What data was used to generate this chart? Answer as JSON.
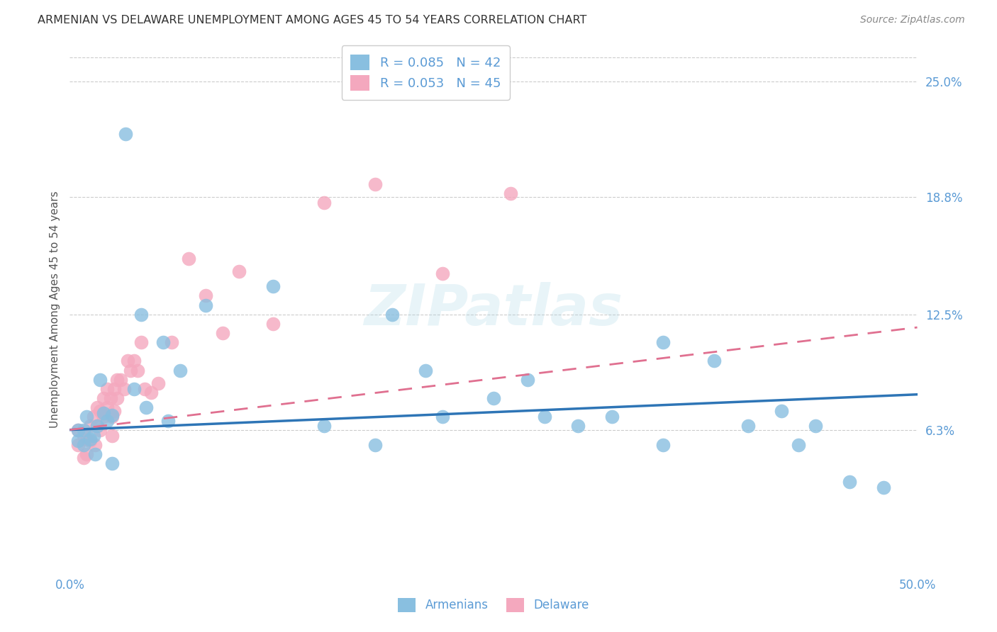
{
  "title": "ARMENIAN VS DELAWARE UNEMPLOYMENT AMONG AGES 45 TO 54 YEARS CORRELATION CHART",
  "source": "Source: ZipAtlas.com",
  "ylabel": "Unemployment Among Ages 45 to 54 years",
  "xlim": [
    0.0,
    0.5
  ],
  "ylim": [
    -0.015,
    0.27
  ],
  "ytick_vals": [
    0.063,
    0.125,
    0.188,
    0.25
  ],
  "ytick_labels": [
    "6.3%",
    "12.5%",
    "18.8%",
    "25.0%"
  ],
  "grid_color": "#cccccc",
  "background_color": "#ffffff",
  "title_color": "#333333",
  "axis_label_color": "#555555",
  "label_color": "#5b9bd5",
  "armenians_color": "#89bfe0",
  "delaware_color": "#f4a8be",
  "armenians_line_color": "#2e75b6",
  "delaware_line_color": "#e07090",
  "legend_armenians_label": "R = 0.085   N = 42",
  "legend_delaware_label": "R = 0.053   N = 45",
  "watermark": "ZIPatlas",
  "arm_line_x0": 0.0,
  "arm_line_y0": 0.063,
  "arm_line_x1": 0.5,
  "arm_line_y1": 0.082,
  "del_line_x0": 0.0,
  "del_line_y0": 0.063,
  "del_line_x1": 0.5,
  "del_line_y1": 0.118,
  "armenians_x": [
    0.033,
    0.02,
    0.016,
    0.022,
    0.025,
    0.01,
    0.008,
    0.005,
    0.014,
    0.012,
    0.018,
    0.038,
    0.042,
    0.055,
    0.065,
    0.08,
    0.058,
    0.045,
    0.12,
    0.15,
    0.18,
    0.22,
    0.19,
    0.21,
    0.28,
    0.32,
    0.35,
    0.38,
    0.4,
    0.43,
    0.46,
    0.48,
    0.35,
    0.27,
    0.25,
    0.3,
    0.42,
    0.44,
    0.005,
    0.008,
    0.015,
    0.025
  ],
  "armenians_y": [
    0.222,
    0.072,
    0.065,
    0.068,
    0.071,
    0.07,
    0.063,
    0.057,
    0.06,
    0.058,
    0.09,
    0.085,
    0.125,
    0.11,
    0.095,
    0.13,
    0.068,
    0.075,
    0.14,
    0.065,
    0.055,
    0.07,
    0.125,
    0.095,
    0.07,
    0.07,
    0.055,
    0.1,
    0.065,
    0.055,
    0.035,
    0.032,
    0.11,
    0.09,
    0.08,
    0.065,
    0.073,
    0.065,
    0.063,
    0.055,
    0.05,
    0.045
  ],
  "delaware_x": [
    0.005,
    0.005,
    0.008,
    0.008,
    0.01,
    0.01,
    0.012,
    0.012,
    0.014,
    0.015,
    0.016,
    0.016,
    0.018,
    0.018,
    0.02,
    0.02,
    0.022,
    0.022,
    0.024,
    0.025,
    0.025,
    0.026,
    0.026,
    0.028,
    0.028,
    0.03,
    0.032,
    0.034,
    0.036,
    0.038,
    0.04,
    0.042,
    0.044,
    0.048,
    0.052,
    0.06,
    0.07,
    0.08,
    0.09,
    0.1,
    0.12,
    0.15,
    0.18,
    0.22,
    0.26
  ],
  "delaware_y": [
    0.063,
    0.055,
    0.06,
    0.048,
    0.058,
    0.05,
    0.065,
    0.057,
    0.07,
    0.055,
    0.075,
    0.065,
    0.073,
    0.063,
    0.08,
    0.07,
    0.085,
    0.075,
    0.08,
    0.07,
    0.06,
    0.085,
    0.073,
    0.09,
    0.08,
    0.09,
    0.085,
    0.1,
    0.095,
    0.1,
    0.095,
    0.11,
    0.085,
    0.083,
    0.088,
    0.11,
    0.155,
    0.135,
    0.115,
    0.148,
    0.12,
    0.185,
    0.195,
    0.147,
    0.19
  ]
}
